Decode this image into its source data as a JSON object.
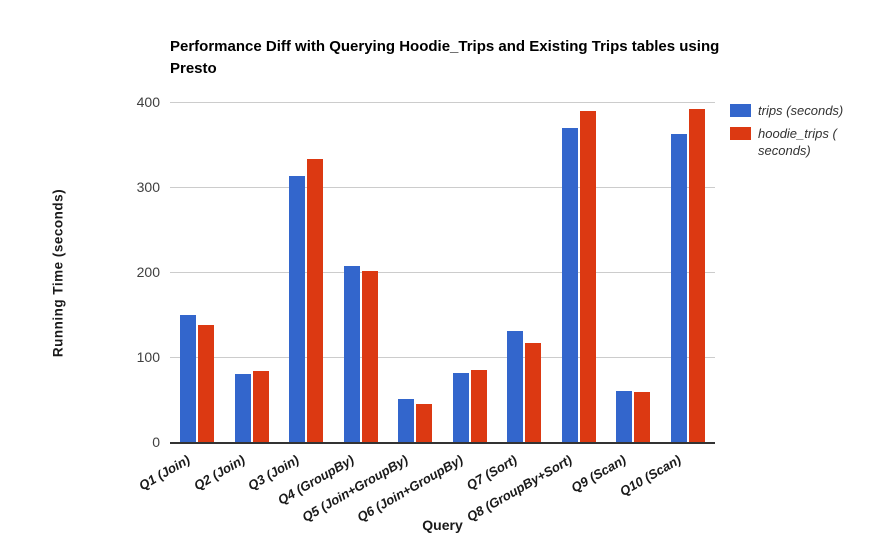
{
  "chart_data": {
    "type": "bar",
    "title": "Performance Diff with Querying Hoodie_Trips and Existing Trips tables using Presto",
    "xlabel": "Query",
    "ylabel": "Running Time (seconds)",
    "categories": [
      "Q1 (Join)",
      "Q2 (Join)",
      "Q3 (Join)",
      "Q4 (GroupBy)",
      "Q5 (Join+GroupBy)",
      "Q6 (Join+GroupBy)",
      "Q7 (Sort)",
      "Q8 (GroupBy+Sort)",
      "Q9 (Scan)",
      "Q10 (Scan)"
    ],
    "series": [
      {
        "name": "trips (seconds)",
        "color": "#3366CC",
        "values": [
          150,
          80,
          313,
          207,
          51,
          81,
          131,
          370,
          60,
          362
        ]
      },
      {
        "name": "hoodie_trips ( seconds)",
        "color": "#DC3912",
        "values": [
          138,
          84,
          333,
          201,
          45,
          85,
          117,
          390,
          59,
          392
        ]
      }
    ],
    "ylim": [
      0,
      400
    ],
    "yticks": [
      0,
      100,
      200,
      300,
      400
    ],
    "grid": true,
    "legend_position": "right",
    "axis_line_color": "#333333",
    "gridline_color": "#cccccc"
  }
}
